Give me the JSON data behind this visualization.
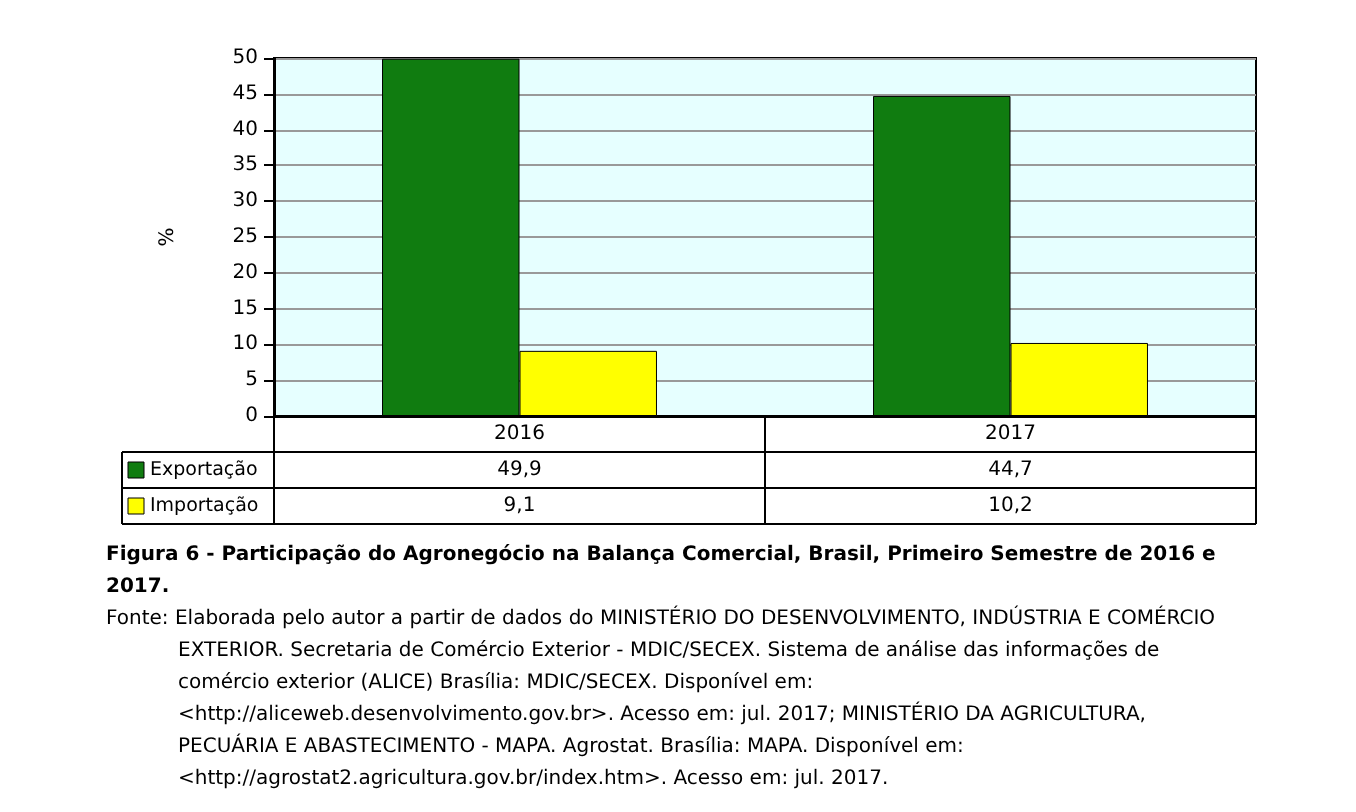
{
  "chart_data": {
    "type": "bar",
    "title": "Figura 6 - Participação do Agronegócio na Balança Comercial, Brasil, Primeiro Semestre de 2016 e 2017.",
    "ylabel": "%",
    "categories": [
      "2016",
      "2017"
    ],
    "series": [
      {
        "name": "Exportação",
        "color": "#107c10",
        "values": [
          49.9,
          44.7
        ],
        "value_labels": [
          "49,9",
          "44,7"
        ]
      },
      {
        "name": "Importação",
        "color": "#ffff00",
        "values": [
          9.1,
          10.2
        ],
        "value_labels": [
          "9,1",
          "10,2"
        ]
      }
    ],
    "ylim": [
      0,
      50
    ],
    "yticks": [
      0,
      5,
      10,
      15,
      20,
      25,
      30,
      35,
      40,
      45,
      50
    ],
    "grid": "y",
    "legend": "bottom left",
    "annotations": [
      "Fonte: Elaborada pelo autor a partir de dados do MINISTÉRIO DO DESENVOLVIMENTO, INDÚSTRIA E COMÉRCIO EXTERIOR. Secretaria de Comércio Exterior - MDIC/SECEX. Sistema de análise das informações de comércio exterior (ALICE) Brasília: MDIC/SECEX. Disponível em: <http://aliceweb.desenvolvimento.gov.br>. Acesso em: jul. 2017; MINISTÉRIO DA AGRICULTURA, PECUÁRIA E ABASTECIMENTO - MAPA. Agrostat. Brasília: MAPA. Disponível em: <http://agrostat2.agricultura.gov.br/index.htm>. Acesso em: jul. 2017."
    ]
  }
}
